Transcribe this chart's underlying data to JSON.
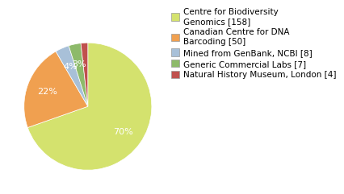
{
  "labels": [
    "Centre for Biodiversity\nGenomics [158]",
    "Canadian Centre for DNA\nBarcoding [50]",
    "Mined from GenBank, NCBI [8]",
    "Generic Commercial Labs [7]",
    "Natural History Museum, London [4]"
  ],
  "values": [
    158,
    50,
    8,
    7,
    4
  ],
  "colors": [
    "#d4e26e",
    "#f0a050",
    "#a8c0d8",
    "#8dba6a",
    "#c0504d"
  ],
  "background_color": "#ffffff",
  "startangle": 90,
  "legend_fontsize": 7.5
}
